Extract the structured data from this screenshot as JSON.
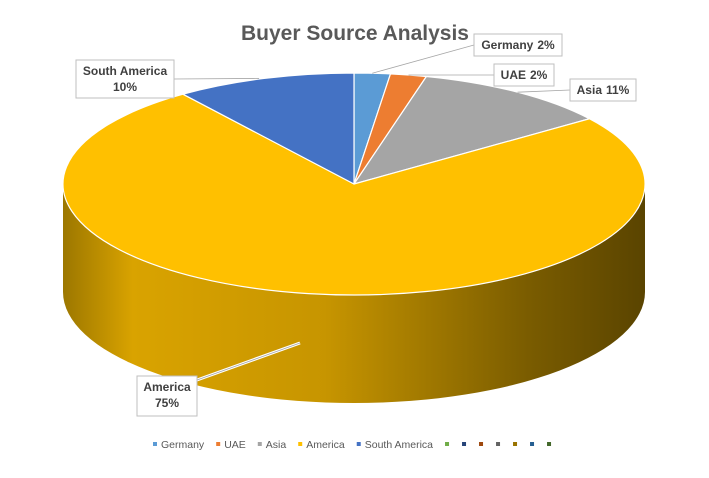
{
  "chart_data": {
    "type": "pie",
    "title": "Buyer Source Analysis",
    "slices": [
      {
        "label": "Germany",
        "value": 2,
        "data_label_name": "Germany",
        "data_label_value": "2%",
        "color": "#5B9BD5"
      },
      {
        "label": "UAE",
        "value": 2,
        "data_label_name": "UAE",
        "data_label_value": "2%",
        "color": "#ED7D31"
      },
      {
        "label": "Asia",
        "value": 11,
        "data_label_name": "Asia",
        "data_label_value": "11%",
        "color": "#A5A5A5"
      },
      {
        "label": "America",
        "value": 75,
        "data_label_name": "America",
        "data_label_value": "75%",
        "color": "#FFC000"
      },
      {
        "label": "South America",
        "value": 10,
        "data_label_name": "South America",
        "data_label_value": "10%",
        "color": "#4472C4"
      }
    ],
    "legend": {
      "position": "bottom",
      "entries": [
        "Germany",
        "UAE",
        "Asia",
        "America",
        "South America"
      ],
      "extra_marker_colors": [
        "#70AD47",
        "#264478",
        "#9E480E",
        "#636363",
        "#997300",
        "#255E91",
        "#43682B"
      ]
    },
    "three_d": true
  }
}
